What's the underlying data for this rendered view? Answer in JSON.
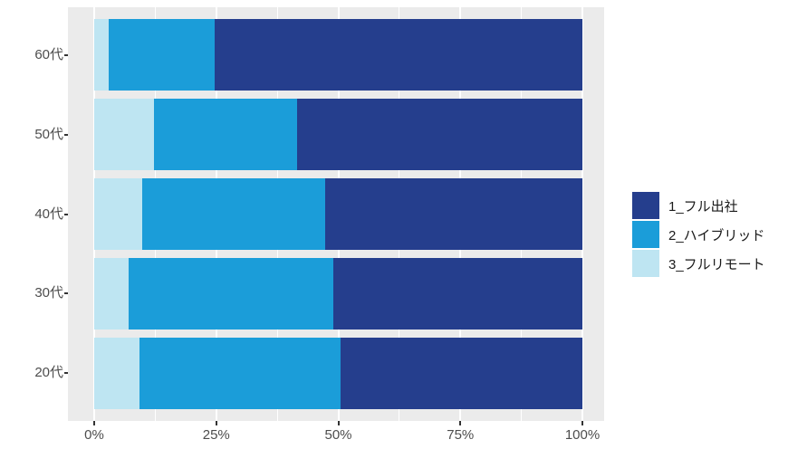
{
  "chart_data": {
    "type": "bar",
    "orientation": "horizontal",
    "stacked": true,
    "percent_stacked": true,
    "title": "",
    "xlabel": "",
    "ylabel": "",
    "categories": [
      "60代",
      "50代",
      "40代",
      "30代",
      "20代"
    ],
    "series": [
      {
        "name": "1_フル出社",
        "color": "#253E8D",
        "values": [
          75.3,
          58.4,
          52.7,
          51.1,
          49.6
        ]
      },
      {
        "name": "2_ハイブリッド",
        "color": "#1B9DD9",
        "values": [
          21.8,
          29.4,
          37.5,
          41.8,
          41.2
        ]
      },
      {
        "name": "3_フルリモート",
        "color": "#BEE5F2",
        "values": [
          2.9,
          12.2,
          9.8,
          7.1,
          9.2
        ]
      }
    ],
    "stack_order_from_origin": [
      "3_フルリモート",
      "2_ハイブリッド",
      "1_フル出社"
    ],
    "x_axis": {
      "range": [
        0,
        100
      ],
      "ticks": [
        {
          "value": 0,
          "label": "0%"
        },
        {
          "value": 25,
          "label": "25%"
        },
        {
          "value": 50,
          "label": "50%"
        },
        {
          "value": 75,
          "label": "75%"
        },
        {
          "value": 100,
          "label": "100%"
        }
      ],
      "minor_ticks": [
        12.5,
        37.5,
        62.5,
        87.5
      ]
    },
    "y_axis": {
      "labels": [
        "60代",
        "50代",
        "40代",
        "30代",
        "20代"
      ]
    },
    "legend": {
      "position": "right",
      "items": [
        "1_フル出社",
        "2_ハイブリッド",
        "3_フルリモート"
      ]
    },
    "grid": true,
    "styles": {
      "background": "#FFFFFF",
      "panel_bg": "#EBEBEB",
      "grid_color": "#FFFFFF",
      "axis_text_color": "#4D4D4D",
      "legend_text_color": "#1A1A1A",
      "tick_mark_color": "#333333"
    }
  }
}
